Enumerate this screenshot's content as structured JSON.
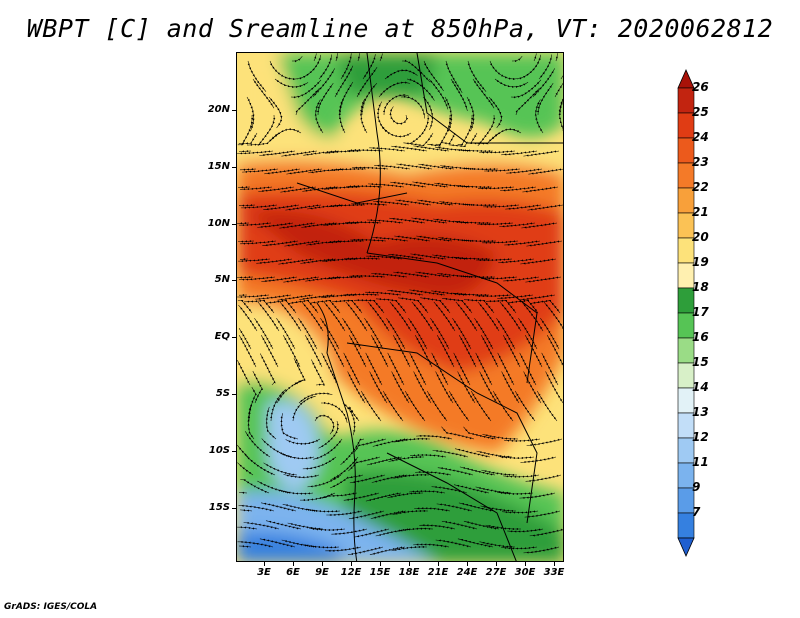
{
  "title": "WBPT [C] and Sreamline at 850hPa, VT: 2020062812",
  "footer": "GrADS: IGES/COLA",
  "map": {
    "type": "filled contour + streamlines",
    "variable": "WBPT",
    "units": "C",
    "level": "850hPa",
    "valid_time": "2020062812",
    "lat_ticks": [
      "20N",
      "15N",
      "10N",
      "5N",
      "EQ",
      "5S",
      "10S",
      "15S"
    ],
    "lon_ticks": [
      "3E",
      "6E",
      "9E",
      "12E",
      "15E",
      "18E",
      "21E",
      "24E",
      "27E",
      "30E",
      "33E"
    ]
  },
  "colorbar": {
    "labels": [
      "7",
      "9",
      "11",
      "12",
      "13",
      "14",
      "15",
      "16",
      "17",
      "18",
      "19",
      "20",
      "21",
      "22",
      "23",
      "24",
      "25",
      "26"
    ],
    "colors": [
      "#1f5fd0",
      "#3580e0",
      "#5a9ce8",
      "#7bb3ee",
      "#9fcaf3",
      "#c2def8",
      "#e2f2f7",
      "#d8f0c8",
      "#9adc86",
      "#56c455",
      "#2e9e3a",
      "#fff0b0",
      "#fde27a",
      "#fbc255",
      "#f8a03a",
      "#f47a28",
      "#ec5a1c",
      "#e03c14",
      "#c22410",
      "#a81208"
    ]
  }
}
